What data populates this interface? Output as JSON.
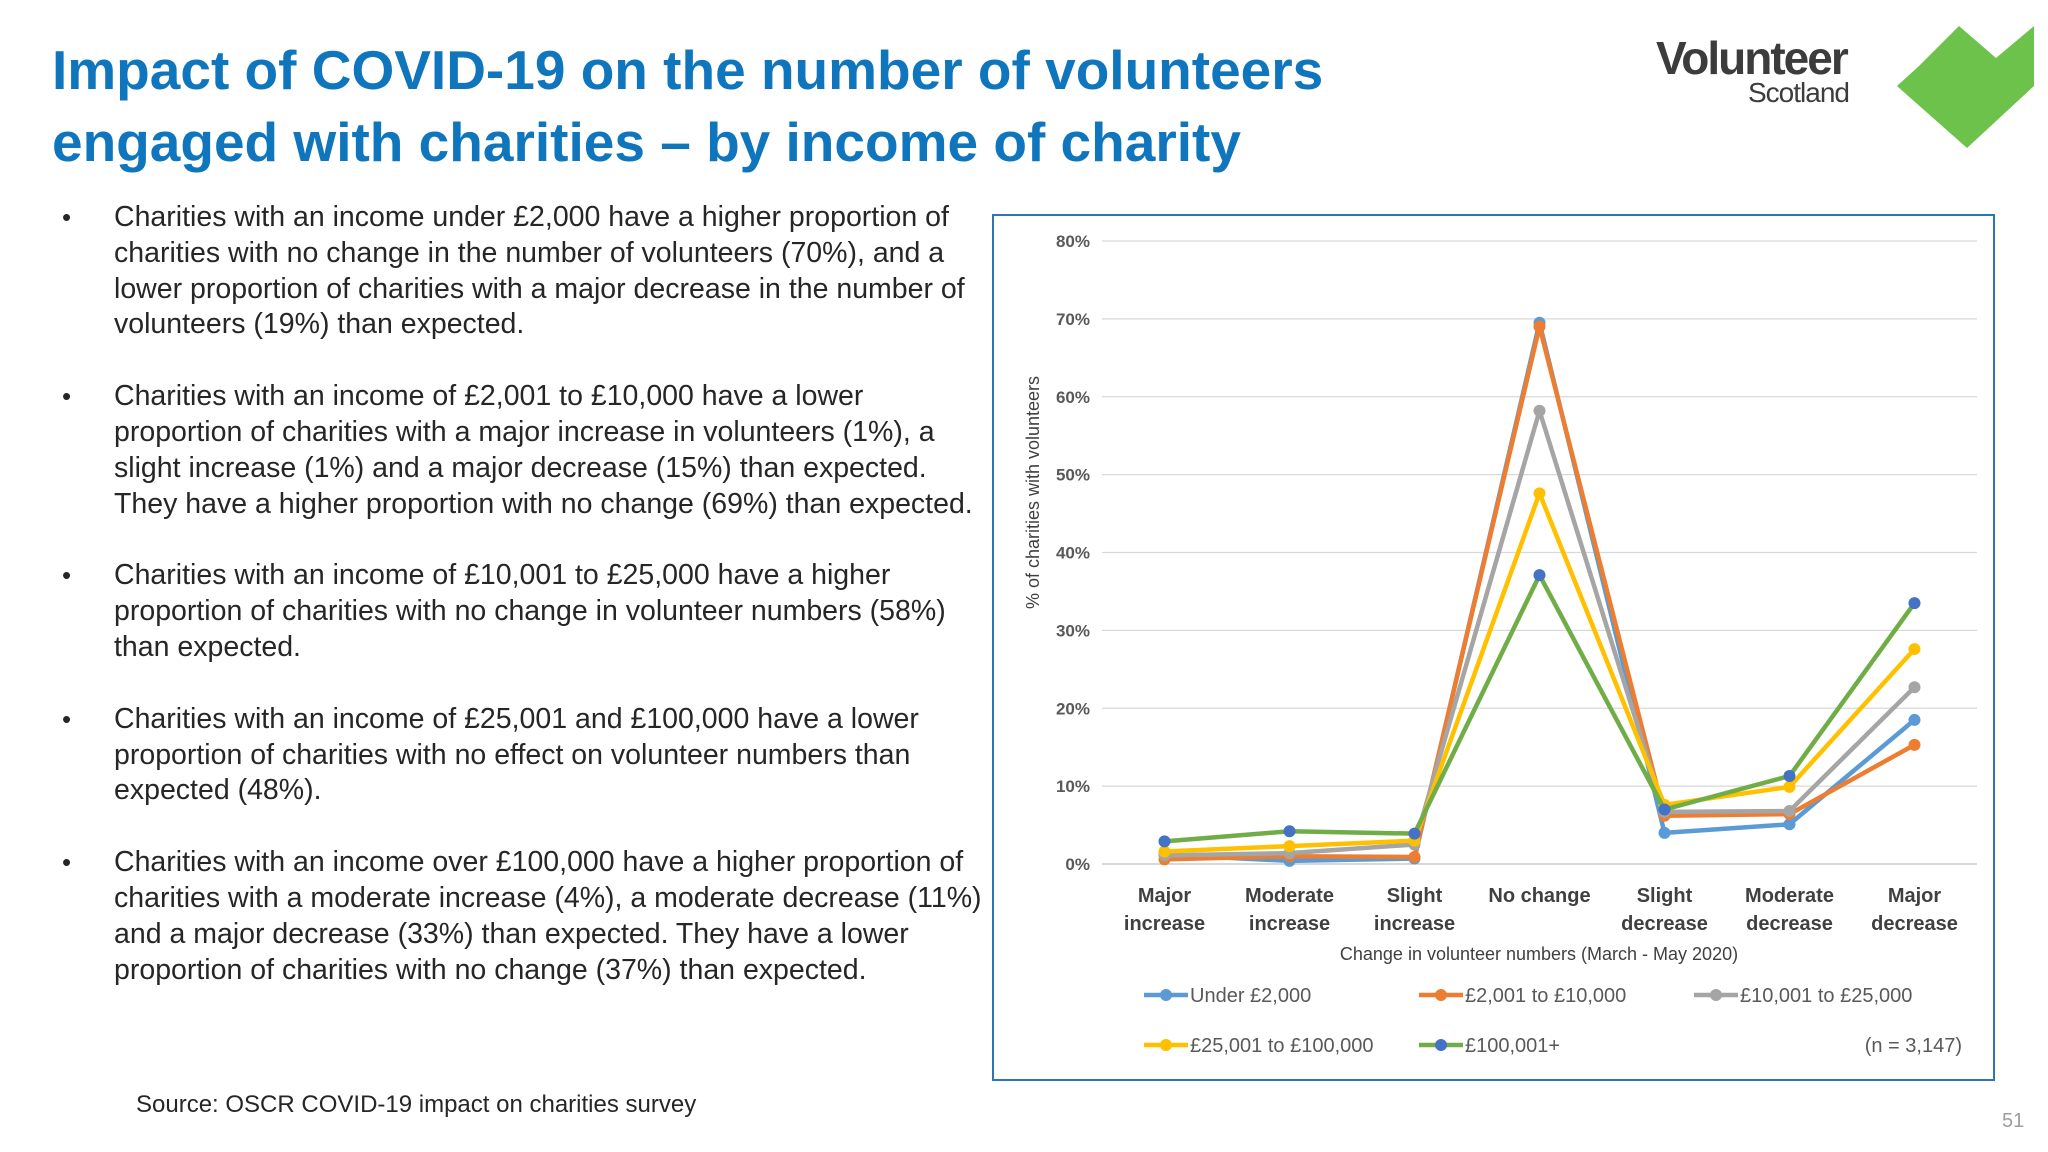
{
  "slide": {
    "title_line1": "Impact of COVID-19 on the number of volunteers",
    "title_line2": "engaged with charities – by income of charity",
    "logo": {
      "name_top": "Volunteer",
      "name_bottom": "Scotland",
      "heart_color": "#6cc24a",
      "text_color": "#3c3c3c"
    },
    "bullets": [
      "Charities with an income under £2,000 have a higher proportion of charities with no change in the number of volunteers (70%), and a lower proportion of charities with a major decrease in the number of volunteers (19%) than expected.",
      "Charities with an income of £2,001 to £10,000 have a lower proportion of charities with a major increase in volunteers (1%), a slight increase (1%) and a major decrease (15%) than expected. They have a higher proportion with no change (69%) than expected.",
      "Charities with an income of £10,001 to £25,000 have a higher proportion of charities with no change in volunteer numbers (58%) than expected.",
      "Charities with an income of £25,001 and £100,000 have a lower proportion of charities with no effect on volunteer numbers than expected (48%).",
      "Charities with an income over £100,000 have a higher proportion of charities with a moderate increase (4%), a moderate decrease (11%) and a major decrease (33%) than expected. They have a lower proportion of charities with no change (37%) than expected."
    ],
    "bullet_symbol": "•",
    "source": "Source: OSCR COVID-19 impact on charities survey",
    "page_number": "51",
    "title_color": "#0f75bd"
  },
  "chart_data": {
    "type": "line",
    "categories": [
      [
        "Major",
        "increase"
      ],
      [
        "Moderate",
        "increase"
      ],
      [
        "Slight",
        "increase"
      ],
      [
        "No change"
      ],
      [
        "Slight",
        "decrease"
      ],
      [
        "Moderate",
        "decrease"
      ],
      [
        "Major",
        "decrease"
      ]
    ],
    "xlabel": "Change in volunteer numbers (March - May 2020)",
    "ylabel": "% of charities with volunteers",
    "ylim": [
      0,
      80
    ],
    "yticks": [
      0,
      10,
      20,
      30,
      40,
      50,
      60,
      70,
      80
    ],
    "ytick_labels": [
      "0%",
      "10%",
      "20%",
      "30%",
      "40%",
      "50%",
      "60%",
      "70%",
      "80%"
    ],
    "grid": "horizontal",
    "legend_position": "bottom",
    "annotation": "(n = 3,147)",
    "series": [
      {
        "name": "Under £2,000",
        "color": "#5b9bd5",
        "values": [
          1.2,
          0.4,
          0.7,
          69.5,
          4.0,
          5.1,
          18.5
        ]
      },
      {
        "name": "£2,001 to £10,000",
        "color": "#ed7d31",
        "values": [
          0.6,
          1.0,
          0.9,
          69.0,
          6.2,
          6.4,
          15.3
        ]
      },
      {
        "name": "£10,001 to £25,000",
        "color": "#a5a5a5",
        "values": [
          1.1,
          1.4,
          2.5,
          58.2,
          6.7,
          6.8,
          22.7
        ]
      },
      {
        "name": "£25,001 to £100,000",
        "color": "#ffc000",
        "values": [
          1.6,
          2.3,
          3.0,
          47.6,
          7.6,
          9.9,
          27.6
        ]
      },
      {
        "name": "£100,001+",
        "color": "#70ad47",
        "marker_color": "#4472c4",
        "values": [
          2.9,
          4.2,
          3.9,
          37.1,
          7.0,
          11.3,
          33.5
        ]
      }
    ]
  }
}
